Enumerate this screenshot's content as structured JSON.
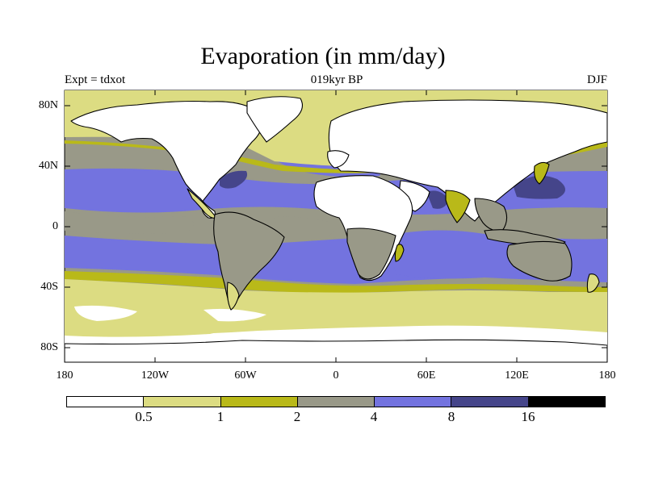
{
  "title": "Evaporation (in mm/day)",
  "expt_label": "Expt = tdxot",
  "time_label": "019kyr BP",
  "season_label": "DJF",
  "y_axis": {
    "ticks": [
      "80N",
      "40N",
      "0",
      "40S",
      "80S"
    ]
  },
  "x_axis": {
    "ticks": [
      "180",
      "120W",
      "60W",
      "0",
      "60E",
      "120E",
      "180"
    ]
  },
  "colorbar": {
    "colors": [
      "#ffffff",
      "#dcdc82",
      "#b9b919",
      "#999988",
      "#7373df",
      "#45458a",
      "#000000"
    ],
    "labels": [
      "0.5",
      "1",
      "2",
      "4",
      "8",
      "16"
    ]
  }
}
